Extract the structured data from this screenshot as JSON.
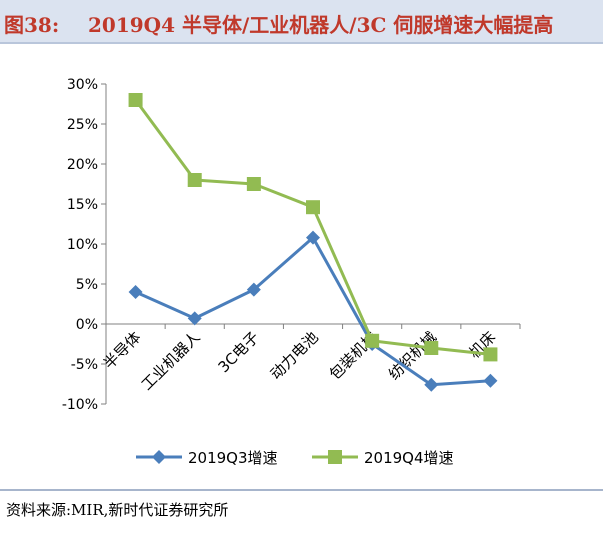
{
  "header": {
    "figure_label": "图38:",
    "title": "2019Q4 半导体/工业机器人/3C 伺服增速大幅提高"
  },
  "source": "资料来源:MIR,新时代证券研究所",
  "chart_data": {
    "type": "line",
    "title": "2019Q4 半导体/工业机器人/3C 伺服增速大幅提高",
    "xlabel": "",
    "ylabel": "",
    "categories": [
      "半导体",
      "工业机器人",
      "3C电子",
      "动力电池",
      "包装机械",
      "纺织机械",
      "机床"
    ],
    "ylim": [
      -10,
      30
    ],
    "yticks": [
      -10,
      -5,
      0,
      5,
      10,
      15,
      20,
      25,
      30
    ],
    "ytick_labels": [
      "-10%",
      "-5%",
      "0%",
      "5%",
      "10%",
      "15%",
      "20%",
      "25%",
      "30%"
    ],
    "grid": false,
    "legend_position": "bottom",
    "series": [
      {
        "name": "2019Q3增速",
        "color": "#4a7ebb",
        "marker": "diamond",
        "values": [
          4,
          0.7,
          4.3,
          10.8,
          -2.5,
          -7.6,
          -7.1
        ]
      },
      {
        "name": "2019Q4增速",
        "color": "#92bb52",
        "marker": "square",
        "values": [
          28,
          18,
          17.5,
          14.6,
          -2.1,
          -3,
          -3.8
        ]
      }
    ]
  }
}
